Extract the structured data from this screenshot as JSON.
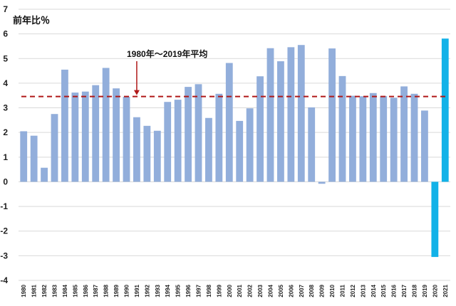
{
  "chart_data": {
    "type": "bar",
    "ylabel": "前年比％",
    "ylim": [
      -4,
      7
    ],
    "yticks": [
      "-4",
      "-3",
      "-2",
      "-1",
      "0",
      "1",
      "2",
      "3",
      "4",
      "5",
      "6",
      "7"
    ],
    "grid": true,
    "categories": [
      "1980",
      "1981",
      "1982",
      "1983",
      "1984",
      "1985",
      "1986",
      "1987",
      "1988",
      "1989",
      "1990",
      "1991",
      "1992",
      "1993",
      "1994",
      "1995",
      "1996",
      "1997",
      "1998",
      "1999",
      "2000",
      "2001",
      "2002",
      "2003",
      "2004",
      "2005",
      "2006",
      "2007",
      "2008",
      "2009",
      "2010",
      "2011",
      "2012",
      "2013",
      "2014",
      "2015",
      "2016",
      "2017",
      "2018",
      "2019",
      "2020",
      "2021"
    ],
    "values": [
      2.05,
      1.87,
      0.57,
      2.75,
      4.55,
      3.62,
      3.66,
      3.92,
      4.62,
      3.79,
      3.45,
      2.62,
      2.27,
      2.07,
      3.24,
      3.33,
      3.85,
      3.96,
      2.59,
      3.57,
      4.82,
      2.47,
      2.98,
      4.28,
      5.42,
      4.89,
      5.46,
      5.55,
      3.02,
      -0.08,
      5.41,
      4.29,
      3.49,
      3.47,
      3.6,
      3.48,
      3.41,
      3.87,
      3.57,
      2.89,
      -3.05,
      5.81
    ],
    "highlight_categories": [
      "2020",
      "2021"
    ],
    "colors": {
      "bar": "#92aedb",
      "highlight": "#12b2e8",
      "avg_line": "#b01818",
      "grid": "#d9d9d9"
    },
    "reference_line": {
      "value": 3.46,
      "style": "dashed",
      "label": "1980年～2019年平均",
      "arrow_at": "1991"
    }
  }
}
